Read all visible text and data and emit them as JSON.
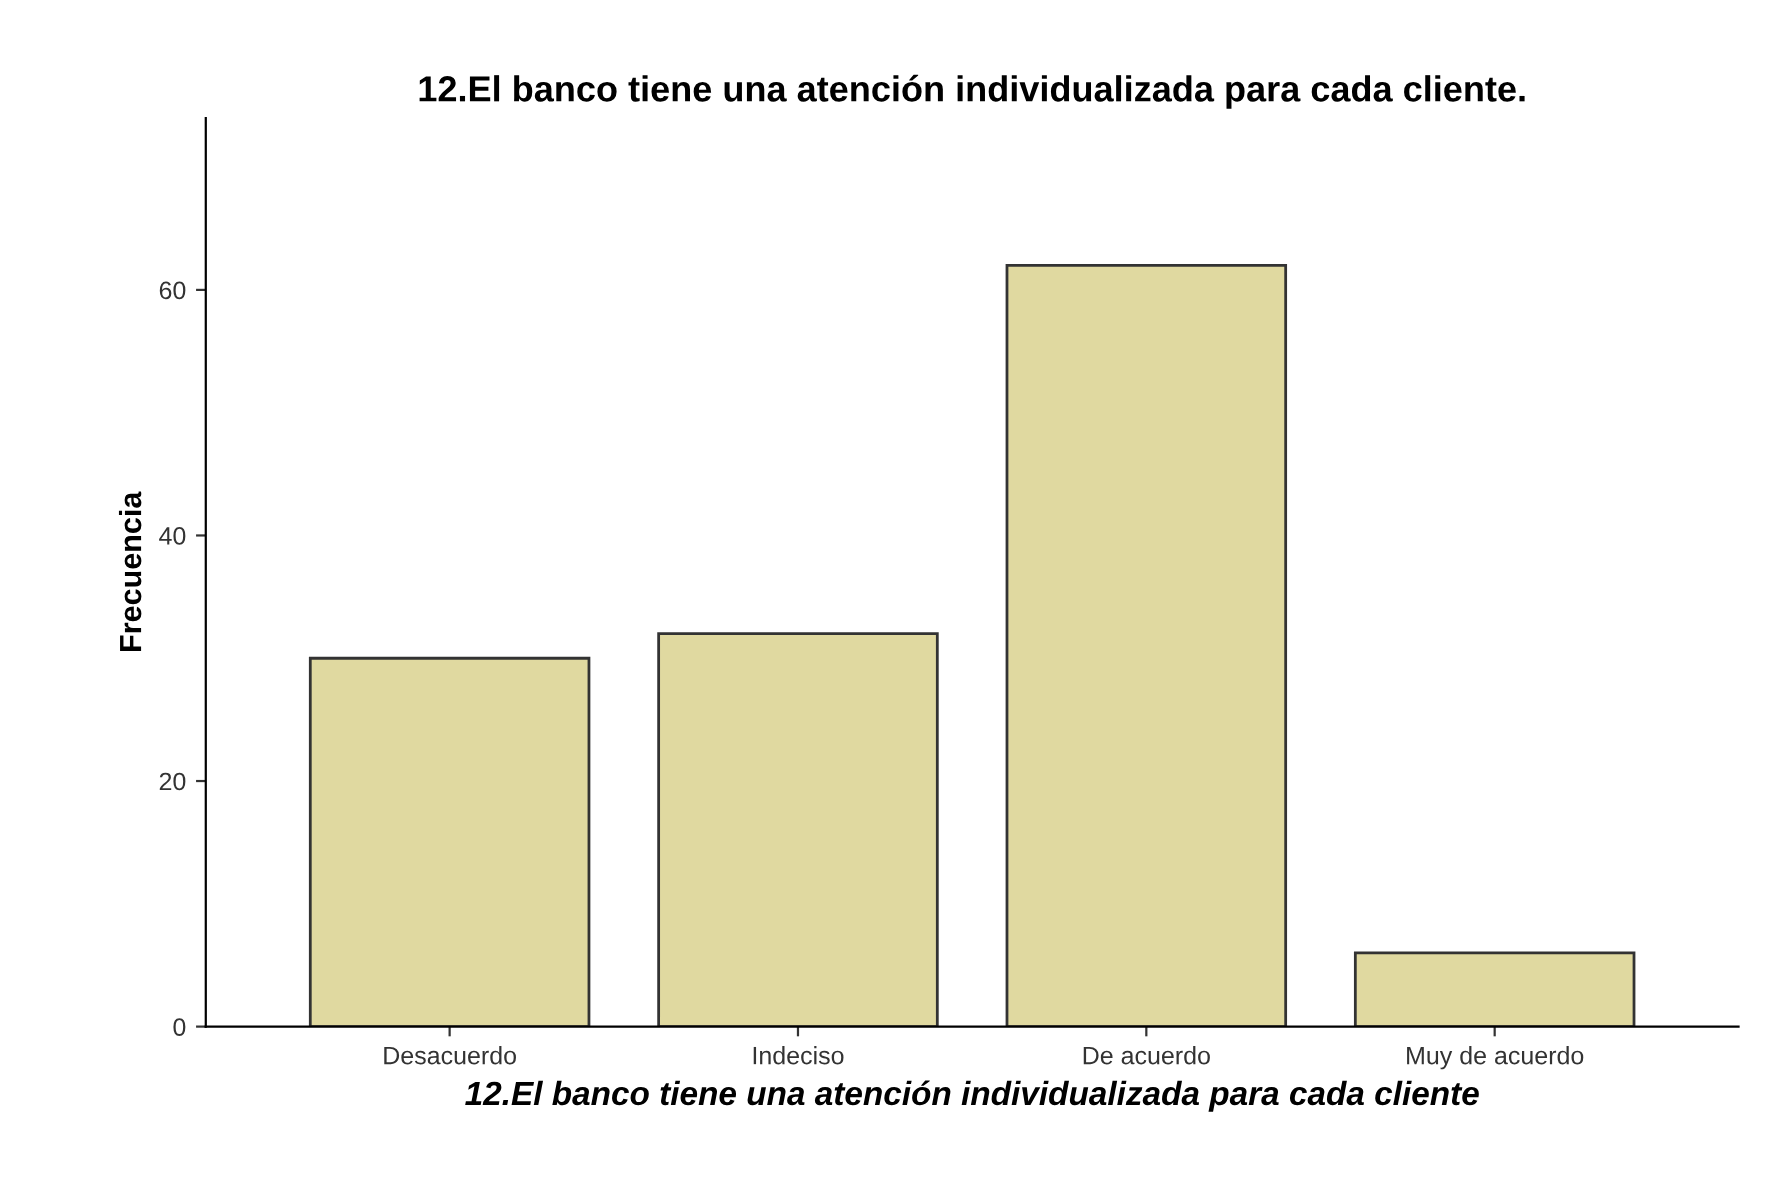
{
  "chart_data": {
    "type": "bar",
    "title": "12.El banco tiene una atención individualizada para cada cliente.",
    "xlabel": "12.El banco tiene una atención individualizada para cada cliente",
    "ylabel": "Frecuencia",
    "categories": [
      "Desacuerdo",
      "Indeciso",
      "De acuerdo",
      "Muy de acuerdo"
    ],
    "values": [
      30,
      32,
      62,
      6
    ],
    "color": "#e0d9a0",
    "ylim": [
      0,
      74
    ],
    "yticks": [
      0,
      20,
      40,
      60
    ],
    "grid": false
  }
}
